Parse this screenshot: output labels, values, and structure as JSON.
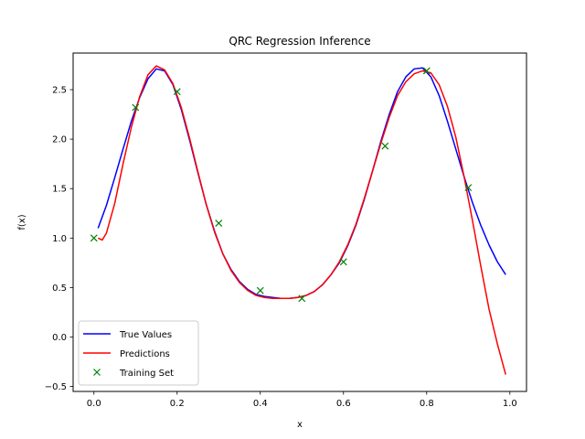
{
  "chart_data": {
    "type": "line",
    "title": "QRC Regression Inference",
    "xlabel": "x",
    "ylabel": "f(x)",
    "xlim": [
      -0.05,
      1.04
    ],
    "ylim": [
      -0.55,
      2.87
    ],
    "xticks": [
      "0.0",
      "0.2",
      "0.4",
      "0.6",
      "0.8",
      "1.0"
    ],
    "xtick_values": [
      0.0,
      0.2,
      0.4,
      0.6,
      0.8,
      1.0
    ],
    "yticks": [
      "−0.5",
      "0.0",
      "0.5",
      "1.0",
      "1.5",
      "2.0",
      "2.5"
    ],
    "ytick_values": [
      -0.5,
      0.0,
      0.5,
      1.0,
      1.5,
      2.0,
      2.5
    ],
    "grid": false,
    "legend_position": "lower-left",
    "series": [
      {
        "name": "True Values",
        "style": "line",
        "color": "#0000ff",
        "x": [
          0.01,
          0.03,
          0.05,
          0.07,
          0.09,
          0.11,
          0.13,
          0.15,
          0.17,
          0.19,
          0.21,
          0.23,
          0.25,
          0.27,
          0.29,
          0.31,
          0.33,
          0.35,
          0.37,
          0.39,
          0.41,
          0.43,
          0.45,
          0.47,
          0.49,
          0.51,
          0.53,
          0.55,
          0.57,
          0.59,
          0.61,
          0.63,
          0.65,
          0.67,
          0.69,
          0.71,
          0.73,
          0.75,
          0.77,
          0.79,
          0.81,
          0.83,
          0.85,
          0.87,
          0.89,
          0.91,
          0.93,
          0.95,
          0.97,
          0.99
        ],
        "y": [
          1.1,
          1.33,
          1.61,
          1.9,
          2.18,
          2.42,
          2.61,
          2.71,
          2.69,
          2.55,
          2.3,
          1.99,
          1.66,
          1.34,
          1.07,
          0.84,
          0.68,
          0.56,
          0.48,
          0.43,
          0.41,
          0.4,
          0.39,
          0.39,
          0.4,
          0.42,
          0.46,
          0.53,
          0.63,
          0.75,
          0.92,
          1.13,
          1.39,
          1.68,
          1.98,
          2.25,
          2.48,
          2.63,
          2.71,
          2.72,
          2.63,
          2.44,
          2.18,
          1.9,
          1.62,
          1.36,
          1.13,
          0.93,
          0.76,
          0.63
        ]
      },
      {
        "name": "Predictions",
        "style": "line",
        "color": "#ff0000",
        "x": [
          0.01,
          0.02,
          0.03,
          0.05,
          0.07,
          0.09,
          0.11,
          0.13,
          0.15,
          0.17,
          0.19,
          0.21,
          0.23,
          0.25,
          0.27,
          0.29,
          0.31,
          0.33,
          0.35,
          0.37,
          0.39,
          0.41,
          0.43,
          0.45,
          0.47,
          0.49,
          0.51,
          0.53,
          0.55,
          0.57,
          0.59,
          0.61,
          0.63,
          0.65,
          0.67,
          0.69,
          0.71,
          0.73,
          0.75,
          0.77,
          0.79,
          0.81,
          0.83,
          0.85,
          0.87,
          0.89,
          0.91,
          0.93,
          0.95,
          0.97,
          0.99
        ],
        "y": [
          1.0,
          0.98,
          1.05,
          1.35,
          1.75,
          2.12,
          2.43,
          2.65,
          2.74,
          2.7,
          2.56,
          2.32,
          2.01,
          1.67,
          1.34,
          1.06,
          0.84,
          0.67,
          0.55,
          0.47,
          0.42,
          0.4,
          0.39,
          0.39,
          0.39,
          0.4,
          0.42,
          0.46,
          0.53,
          0.63,
          0.76,
          0.93,
          1.14,
          1.4,
          1.68,
          1.96,
          2.22,
          2.44,
          2.58,
          2.66,
          2.69,
          2.67,
          2.55,
          2.33,
          2.02,
          1.62,
          1.18,
          0.72,
          0.28,
          -0.07,
          -0.38
        ]
      },
      {
        "name": "Training Set",
        "style": "marker",
        "marker": "x",
        "color": "#008000",
        "x": [
          0.0,
          0.1,
          0.2,
          0.3,
          0.4,
          0.5,
          0.6,
          0.7,
          0.8,
          0.9
        ],
        "y": [
          1.0,
          2.32,
          2.48,
          1.15,
          0.47,
          0.39,
          0.76,
          1.93,
          2.69,
          1.51
        ]
      }
    ]
  }
}
